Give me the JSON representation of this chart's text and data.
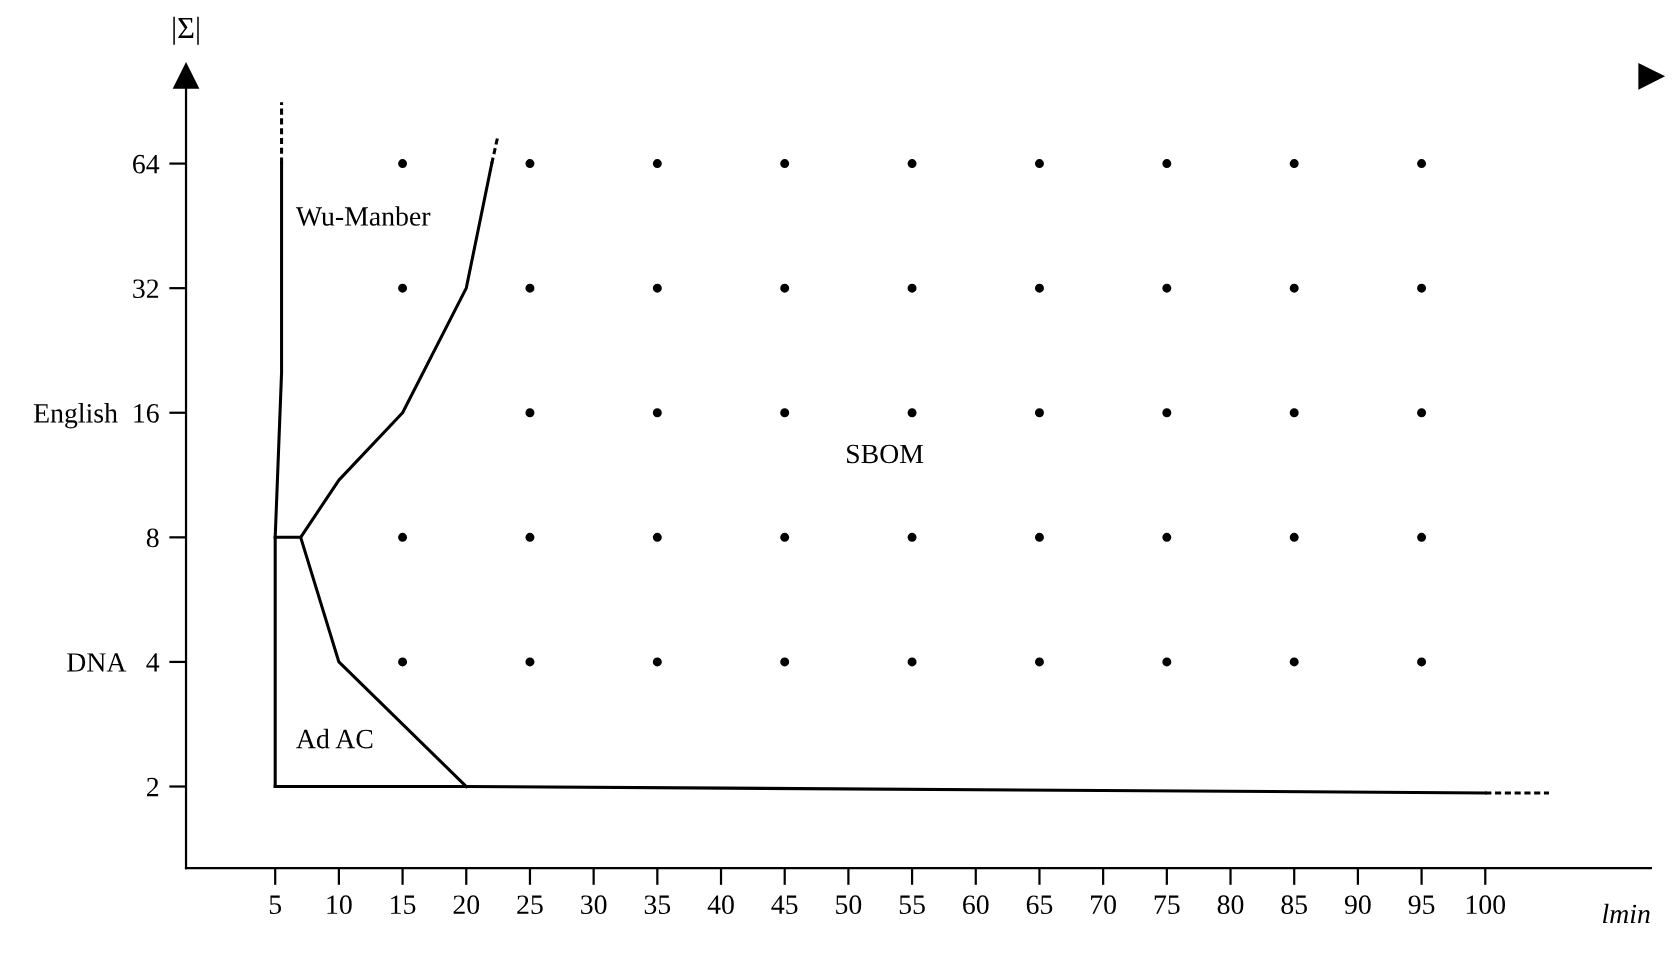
{
  "chart_data": {
    "type": "line",
    "xlabel": "lmin",
    "ylabel": "|Σ|",
    "log": "y",
    "xlim": [
      -2,
      113
    ],
    "ylim": [
      1.27,
      104
    ],
    "xticks": [
      5,
      10,
      15,
      20,
      25,
      30,
      35,
      40,
      45,
      50,
      55,
      60,
      65,
      70,
      75,
      80,
      85,
      90,
      95,
      100
    ],
    "yticks": [
      2,
      {
        "value": 4,
        "label": "DNA   4"
      },
      8,
      {
        "value": 16,
        "label": "English  16"
      },
      32,
      64
    ],
    "grid": false,
    "series": [
      {
        "color": "#000000",
        "line_style": "solid",
        "x": [
          5,
          5,
          5.5,
          5.5
        ],
        "values": [
          2,
          8,
          20,
          64
        ]
      },
      {
        "color": "#000000",
        "line_style": "dashed",
        "x": [
          5.5,
          5.5
        ],
        "values": [
          64,
          90
        ]
      },
      {
        "color": "#000000",
        "line_style": "solid",
        "x": [
          5,
          7,
          10,
          15,
          20,
          22
        ],
        "values": [
          8,
          8,
          11,
          16,
          32,
          64
        ]
      },
      {
        "color": "#000000",
        "line_style": "dashed",
        "x": [
          22,
          22.5
        ],
        "values": [
          64,
          75
        ]
      },
      {
        "color": "#000000",
        "line_style": "solid",
        "x": [
          7,
          10,
          20
        ],
        "values": [
          8,
          4,
          2
        ]
      },
      {
        "color": "#000000",
        "line_style": "solid",
        "x": [
          5,
          20,
          100
        ],
        "values": [
          2,
          2,
          1.93
        ]
      },
      {
        "color": "#000000",
        "line_style": "dashed",
        "x": [
          100,
          105
        ],
        "values": [
          1.93,
          1.93
        ]
      },
      {
        "type": "scatter",
        "color": "#000000",
        "marker": "circle",
        "x": [
          15,
          25,
          35,
          45,
          55,
          65,
          75,
          85,
          95,
          15,
          25,
          35,
          45,
          55,
          65,
          75,
          85,
          95,
          25,
          35,
          45,
          55,
          65,
          75,
          85,
          95,
          15,
          25,
          35,
          45,
          55,
          65,
          75,
          85,
          95,
          15,
          25,
          35,
          45,
          55,
          65,
          75,
          85,
          95
        ],
        "values": [
          64,
          64,
          64,
          64,
          64,
          64,
          64,
          64,
          64,
          32,
          32,
          32,
          32,
          32,
          32,
          32,
          32,
          32,
          16,
          16,
          16,
          16,
          16,
          16,
          16,
          16,
          8,
          8,
          8,
          8,
          8,
          8,
          8,
          8,
          8,
          4,
          4,
          4,
          4,
          4,
          4,
          4,
          4,
          4
        ]
      }
    ],
    "annotations": [
      "Wu-Manber",
      "SBOM",
      "Ad AC"
    ]
  }
}
